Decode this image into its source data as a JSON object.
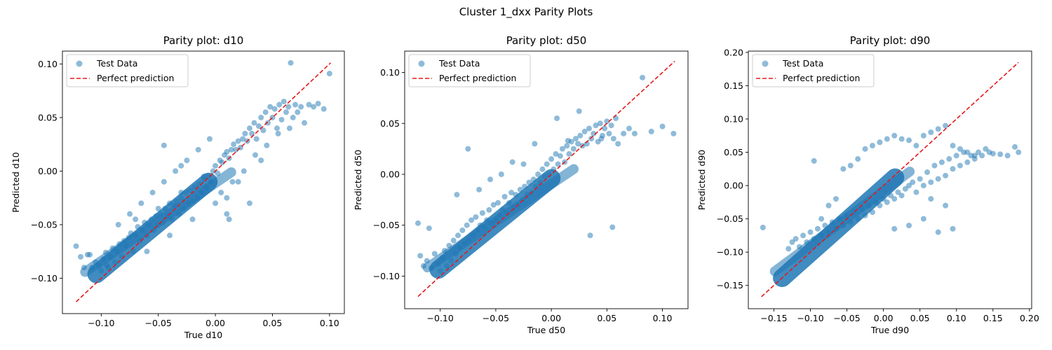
{
  "figure": {
    "suptitle": "Cluster 1_dxx Parity Plots"
  },
  "chart_data": [
    {
      "type": "scatter",
      "title": "Parity plot: d10",
      "xlabel": "True d10",
      "ylabel": "Predicted d10",
      "xlim": [
        -0.134,
        0.113
      ],
      "ylim": [
        -0.133,
        0.112
      ],
      "xticks": [
        -0.1,
        -0.05,
        0.0,
        0.05,
        0.1
      ],
      "xtick_labels": [
        "−0.10",
        "−0.05",
        "0.00",
        "0.05",
        "0.10"
      ],
      "yticks": [
        -0.1,
        -0.05,
        0.0,
        0.05,
        0.1
      ],
      "ytick_labels": [
        "−0.10",
        "−0.05",
        "0.00",
        "0.05",
        "0.10"
      ],
      "grid": false,
      "legend": {
        "position": "top-left",
        "entries": [
          "Test Data",
          "Perfect prediction"
        ]
      },
      "series": [
        {
          "name": "Test Data",
          "kind": "scatter",
          "color": "#1f77b4",
          "alpha": 0.5,
          "x": [
            -0.122,
            -0.118,
            -0.115,
            -0.112,
            -0.108,
            -0.105,
            -0.102,
            -0.1,
            -0.098,
            -0.096,
            -0.094,
            -0.092,
            -0.09,
            -0.088,
            -0.086,
            -0.084,
            -0.082,
            -0.08,
            -0.078,
            -0.076,
            -0.074,
            -0.072,
            -0.07,
            -0.068,
            -0.066,
            -0.064,
            -0.062,
            -0.06,
            -0.058,
            -0.056,
            -0.054,
            -0.052,
            -0.05,
            -0.048,
            -0.046,
            -0.044,
            -0.042,
            -0.04,
            -0.038,
            -0.036,
            -0.034,
            -0.032,
            -0.03,
            -0.028,
            -0.026,
            -0.024,
            -0.022,
            -0.02,
            -0.018,
            -0.016,
            -0.014,
            -0.012,
            -0.01,
            -0.008,
            -0.006,
            -0.004,
            -0.002,
            0.0,
            0.002,
            0.004,
            0.006,
            0.008,
            0.01,
            0.012,
            0.014,
            0.016,
            0.018,
            0.02,
            0.022,
            0.024,
            0.026,
            0.028,
            0.03,
            0.032,
            0.034,
            0.036,
            0.038,
            0.04,
            0.042,
            0.044,
            0.046,
            0.048,
            0.05,
            0.052,
            0.054,
            0.056,
            0.058,
            0.06,
            0.062,
            0.064,
            0.066,
            0.068,
            0.07,
            0.072,
            0.075,
            0.078,
            0.082,
            0.086,
            0.09,
            0.095,
            0.1,
            -0.11,
            -0.095,
            -0.085,
            -0.075,
            -0.065,
            -0.055,
            -0.045,
            -0.035,
            -0.025,
            -0.015,
            -0.005,
            0.005,
            0.015,
            0.025,
            0.035,
            0.045,
            0.055,
            0.065,
            -0.06,
            -0.04,
            -0.02,
            0.0,
            0.02,
            0.04,
            -0.07,
            -0.05,
            -0.03,
            -0.01,
            0.01,
            0.03,
            -0.045,
            -0.03,
            0.01,
            0.012
          ],
          "y": [
            -0.07,
            -0.08,
            -0.09,
            -0.078,
            -0.09,
            -0.085,
            -0.088,
            -0.093,
            -0.082,
            -0.076,
            -0.09,
            -0.08,
            -0.072,
            -0.085,
            -0.075,
            -0.068,
            -0.08,
            -0.065,
            -0.07,
            -0.062,
            -0.058,
            -0.075,
            -0.06,
            -0.052,
            -0.065,
            -0.055,
            -0.048,
            -0.06,
            -0.05,
            -0.045,
            -0.055,
            -0.042,
            -0.05,
            -0.04,
            -0.048,
            -0.035,
            -0.042,
            -0.03,
            -0.045,
            -0.032,
            -0.028,
            -0.04,
            -0.025,
            -0.035,
            -0.02,
            -0.03,
            -0.018,
            -0.028,
            -0.015,
            -0.025,
            -0.012,
            -0.02,
            -0.008,
            -0.015,
            -0.005,
            -0.01,
            0.0,
            0.005,
            -0.002,
            0.01,
            0.008,
            0.015,
            0.018,
            0.012,
            0.02,
            0.025,
            0.02,
            0.028,
            0.022,
            0.03,
            0.035,
            0.028,
            0.04,
            0.035,
            0.045,
            0.03,
            0.042,
            0.05,
            0.038,
            0.055,
            0.045,
            0.06,
            0.05,
            0.058,
            0.04,
            0.062,
            0.048,
            0.065,
            0.055,
            0.06,
            0.101,
            0.05,
            0.062,
            0.055,
            0.06,
            0.045,
            0.062,
            0.06,
            0.063,
            0.058,
            0.091,
            -0.078,
            -0.088,
            -0.05,
            -0.04,
            -0.03,
            -0.02,
            -0.01,
            0.0,
            0.01,
            0.02,
            0.03,
            -0.02,
            -0.01,
            0.0,
            0.015,
            0.024,
            0.035,
            0.04,
            -0.075,
            -0.06,
            -0.045,
            -0.03,
            -0.01,
            0.01,
            -0.045,
            -0.035,
            -0.02,
            -0.005,
            -0.025,
            -0.03,
            0.024,
            0.005,
            -0.04,
            -0.045
          ]
        },
        {
          "name": "Perfect prediction",
          "kind": "line",
          "style": "dashed",
          "color": "#e31a1c",
          "x": [
            -0.122,
            0.101
          ],
          "y": [
            -0.122,
            0.101
          ]
        }
      ]
    },
    {
      "type": "scatter",
      "title": "Parity plot: d50",
      "xlabel": "True d50",
      "ylabel": "Predicted d50",
      "xlim": [
        -0.132,
        0.123
      ],
      "ylim": [
        -0.132,
        0.121
      ],
      "xticks": [
        -0.1,
        -0.05,
        0.0,
        0.05,
        0.1
      ],
      "xtick_labels": [
        "−0.10",
        "−0.05",
        "0.00",
        "0.05",
        "0.10"
      ],
      "yticks": [
        -0.1,
        -0.05,
        0.0,
        0.05,
        0.1
      ],
      "ytick_labels": [
        "−0.10",
        "−0.05",
        "0.00",
        "0.05",
        "0.10"
      ],
      "grid": false,
      "legend": {
        "position": "top-left",
        "entries": [
          "Test Data",
          "Perfect prediction"
        ]
      },
      "series": [
        {
          "name": "Test Data",
          "kind": "scatter",
          "color": "#1f77b4",
          "alpha": 0.5,
          "x": [
            -0.12,
            -0.118,
            -0.115,
            -0.112,
            -0.11,
            -0.108,
            -0.105,
            -0.102,
            -0.1,
            -0.098,
            -0.096,
            -0.094,
            -0.092,
            -0.09,
            -0.088,
            -0.086,
            -0.084,
            -0.082,
            -0.08,
            -0.078,
            -0.076,
            -0.074,
            -0.072,
            -0.07,
            -0.068,
            -0.066,
            -0.064,
            -0.062,
            -0.06,
            -0.058,
            -0.056,
            -0.054,
            -0.052,
            -0.05,
            -0.048,
            -0.046,
            -0.044,
            -0.042,
            -0.04,
            -0.038,
            -0.036,
            -0.034,
            -0.032,
            -0.03,
            -0.028,
            -0.026,
            -0.024,
            -0.022,
            -0.02,
            -0.018,
            -0.016,
            -0.014,
            -0.012,
            -0.01,
            -0.008,
            -0.006,
            -0.004,
            -0.002,
            0.0,
            0.002,
            0.004,
            0.006,
            0.008,
            0.01,
            0.012,
            0.014,
            0.016,
            0.018,
            0.02,
            0.022,
            0.024,
            0.026,
            0.028,
            0.03,
            0.032,
            0.034,
            0.036,
            0.038,
            0.04,
            0.042,
            0.044,
            0.046,
            0.048,
            0.05,
            0.052,
            0.054,
            0.056,
            0.058,
            0.06,
            0.065,
            0.07,
            0.075,
            0.082,
            0.09,
            0.1,
            0.11,
            -0.075,
            -0.085,
            -0.065,
            -0.045,
            -0.025,
            -0.015,
            0.005,
            0.025,
            0.045,
            0.055,
            -0.055,
            -0.035,
            0.035,
            0.015
          ],
          "y": [
            -0.048,
            -0.08,
            -0.09,
            -0.085,
            -0.053,
            -0.092,
            -0.078,
            -0.088,
            -0.095,
            -0.082,
            -0.075,
            -0.09,
            -0.07,
            -0.085,
            -0.065,
            -0.078,
            -0.06,
            -0.072,
            -0.055,
            -0.068,
            -0.05,
            -0.065,
            -0.045,
            -0.06,
            -0.042,
            -0.055,
            -0.05,
            -0.038,
            -0.052,
            -0.045,
            -0.035,
            -0.048,
            -0.03,
            -0.045,
            -0.028,
            -0.04,
            -0.035,
            -0.022,
            -0.038,
            -0.028,
            -0.018,
            -0.032,
            -0.02,
            -0.03,
            -0.015,
            -0.025,
            -0.012,
            -0.02,
            -0.008,
            -0.018,
            -0.005,
            -0.012,
            0.0,
            -0.008,
            0.005,
            -0.002,
            0.01,
            0.0,
            0.015,
            0.005,
            0.02,
            0.01,
            0.018,
            0.025,
            0.012,
            0.028,
            0.02,
            0.032,
            0.025,
            0.035,
            0.03,
            0.038,
            0.028,
            0.042,
            0.03,
            0.045,
            0.035,
            0.04,
            0.048,
            0.032,
            0.05,
            0.038,
            0.045,
            0.052,
            0.04,
            0.048,
            0.035,
            0.055,
            0.03,
            0.04,
            0.045,
            0.04,
            0.095,
            0.042,
            0.047,
            0.04,
            0.025,
            -0.02,
            -0.015,
            0.0,
            0.01,
            0.03,
            0.055,
            0.062,
            0.035,
            -0.052,
            -0.005,
            0.012,
            -0.06,
            0.033
          ],
          "_note": ""
        },
        {
          "name": "Perfect prediction",
          "kind": "line",
          "style": "dashed",
          "color": "#e31a1c",
          "x": [
            -0.12,
            0.111
          ],
          "y": [
            -0.12,
            0.111
          ]
        }
      ]
    },
    {
      "type": "scatter",
      "title": "Parity plot: d90",
      "xlabel": "True d90",
      "ylabel": "Predicted d90",
      "xlim": [
        -0.185,
        0.203
      ],
      "ylim": [
        -0.185,
        0.202
      ],
      "xticks": [
        -0.15,
        -0.1,
        -0.05,
        0.0,
        0.05,
        0.1,
        0.15,
        0.2
      ],
      "xtick_labels": [
        "−0.15",
        "−0.10",
        "−0.05",
        "0.00",
        "0.05",
        "0.10",
        "0.15",
        "0.20"
      ],
      "yticks": [
        -0.15,
        -0.1,
        -0.05,
        0.0,
        0.05,
        0.1,
        0.15,
        0.2
      ],
      "ytick_labels": [
        "−0.15",
        "−0.10",
        "−0.05",
        "0.00",
        "0.05",
        "0.10",
        "0.15",
        "0.20"
      ],
      "grid": false,
      "legend": {
        "position": "top-left",
        "entries": [
          "Test Data",
          "Perfect prediction"
        ]
      },
      "series": [
        {
          "name": "Test Data",
          "kind": "scatter",
          "color": "#1f77b4",
          "alpha": 0.5,
          "x": [
            -0.165,
            -0.13,
            -0.125,
            -0.12,
            -0.115,
            -0.11,
            -0.105,
            -0.1,
            -0.095,
            -0.09,
            -0.085,
            -0.08,
            -0.075,
            -0.07,
            -0.065,
            -0.06,
            -0.055,
            -0.05,
            -0.045,
            -0.04,
            -0.035,
            -0.03,
            -0.025,
            -0.02,
            -0.015,
            -0.01,
            -0.005,
            0.0,
            0.005,
            0.01,
            0.015,
            0.02,
            0.025,
            0.03,
            0.035,
            0.04,
            0.045,
            0.05,
            0.055,
            0.06,
            0.065,
            0.07,
            0.075,
            0.08,
            0.085,
            0.09,
            0.095,
            0.1,
            0.105,
            0.11,
            0.115,
            0.12,
            0.125,
            0.13,
            0.135,
            0.14,
            0.145,
            0.15,
            0.16,
            0.17,
            0.18,
            0.185,
            -0.095,
            -0.085,
            -0.075,
            -0.065,
            -0.055,
            -0.045,
            -0.035,
            -0.025,
            -0.015,
            -0.005,
            0.005,
            0.015,
            0.025,
            0.035,
            0.045,
            0.055,
            0.065,
            0.075,
            0.085,
            0.095,
            0.105,
            0.115,
            0.125,
            0.055,
            0.075,
            0.095,
            0.035,
            0.015,
            0.085,
            0.065
          ],
          "y": [
            -0.063,
            -0.095,
            -0.085,
            -0.08,
            -0.092,
            -0.075,
            -0.085,
            -0.07,
            -0.08,
            -0.065,
            -0.075,
            -0.06,
            -0.07,
            -0.055,
            -0.065,
            -0.05,
            -0.06,
            -0.045,
            -0.055,
            -0.04,
            -0.05,
            -0.035,
            -0.045,
            -0.03,
            -0.04,
            -0.025,
            -0.03,
            -0.02,
            -0.025,
            -0.015,
            -0.02,
            -0.01,
            -0.015,
            -0.005,
            0.0,
            0.005,
            -0.01,
            0.01,
            0.0,
            0.02,
            0.005,
            0.03,
            0.01,
            0.035,
            0.015,
            0.04,
            0.025,
            0.045,
            0.03,
            0.05,
            0.035,
            0.045,
            0.04,
            0.05,
            0.045,
            0.055,
            0.05,
            0.048,
            0.047,
            0.045,
            0.058,
            0.05,
            0.037,
            -0.05,
            -0.03,
            -0.02,
            0.025,
            0.03,
            0.04,
            0.055,
            0.06,
            0.065,
            0.07,
            0.075,
            0.07,
            0.068,
            0.06,
            0.075,
            0.08,
            0.085,
            0.09,
            0.06,
            0.055,
            0.05,
            0.045,
            -0.05,
            -0.07,
            -0.065,
            -0.06,
            -0.065,
            -0.03,
            -0.02
          ],
          "_note": ""
        },
        {
          "name": "Perfect prediction",
          "kind": "line",
          "style": "dashed",
          "color": "#e31a1c",
          "x": [
            -0.167,
            0.185
          ],
          "y": [
            -0.167,
            0.185
          ]
        }
      ]
    }
  ]
}
